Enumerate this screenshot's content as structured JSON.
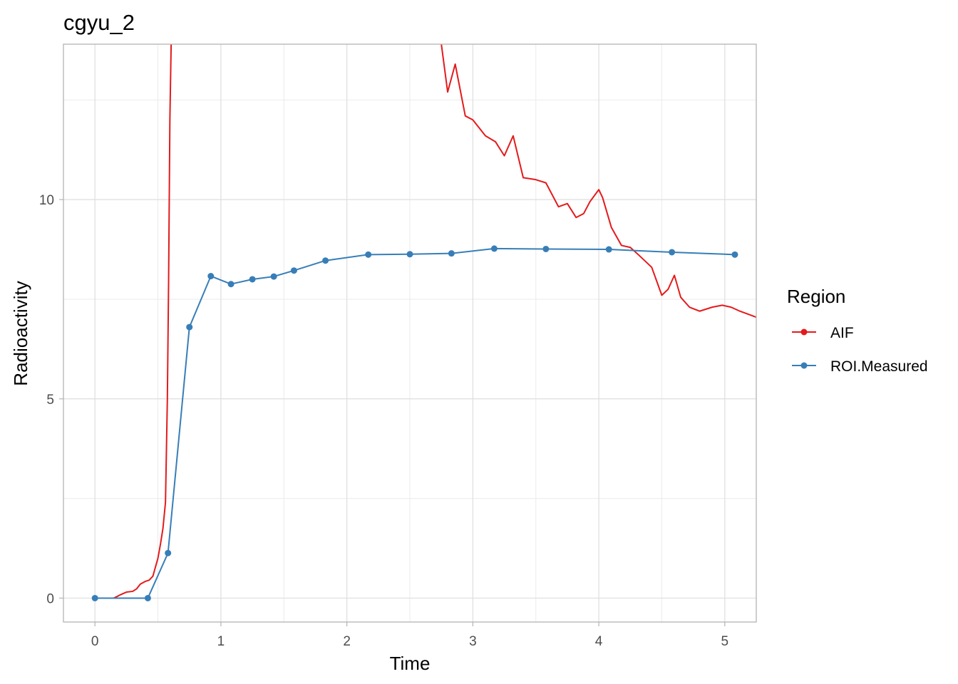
{
  "chart_data": {
    "type": "line",
    "title": "cgyu_2",
    "xlabel": "Time",
    "ylabel": "Radioactivity",
    "xlim": [
      -0.25,
      5.25
    ],
    "ylim": [
      -0.6,
      13.9
    ],
    "x_ticks": [
      0,
      1,
      2,
      3,
      4,
      5
    ],
    "x_tick_labels": [
      "0",
      "1",
      "2",
      "3",
      "4",
      "5"
    ],
    "y_ticks": [
      0,
      5,
      10
    ],
    "y_tick_labels": [
      "0",
      "5",
      "10"
    ],
    "grid": true,
    "legend": {
      "title": "Region",
      "position": "right"
    },
    "series": [
      {
        "name": "AIF",
        "color": "#E41A1C",
        "markers": false,
        "x": [
          0.15,
          0.2,
          0.25,
          0.3,
          0.33,
          0.36,
          0.4,
          0.43,
          0.46,
          0.5,
          0.52,
          0.54,
          0.56,
          0.575,
          0.585,
          0.595,
          0.605,
          0.62,
          0.64,
          2.75,
          2.8,
          2.86,
          2.94,
          3.0,
          3.1,
          3.18,
          3.25,
          3.32,
          3.4,
          3.5,
          3.58,
          3.68,
          3.75,
          3.82,
          3.88,
          3.93,
          4.0,
          4.03,
          4.1,
          4.18,
          4.25,
          4.32,
          4.42,
          4.5,
          4.55,
          4.6,
          4.65,
          4.72,
          4.8,
          4.9,
          4.98,
          5.05,
          5.12,
          5.25
        ],
        "y": [
          0.0,
          0.08,
          0.15,
          0.17,
          0.23,
          0.35,
          0.42,
          0.45,
          0.55,
          1.0,
          1.35,
          1.75,
          2.4,
          5.0,
          8.0,
          12.0,
          13.9,
          15.5,
          18.0,
          13.9,
          12.7,
          13.4,
          12.1,
          12.0,
          11.6,
          11.45,
          11.1,
          11.6,
          10.55,
          10.5,
          10.42,
          9.82,
          9.9,
          9.55,
          9.65,
          9.95,
          10.25,
          10.05,
          9.3,
          8.85,
          8.8,
          8.6,
          8.3,
          7.6,
          7.75,
          8.1,
          7.55,
          7.3,
          7.2,
          7.3,
          7.35,
          7.3,
          7.2,
          7.05
        ]
      },
      {
        "name": "ROI.Measured",
        "color": "#377EB8",
        "markers": true,
        "x": [
          0.0,
          0.42,
          0.58,
          0.75,
          0.92,
          1.08,
          1.25,
          1.42,
          1.58,
          1.83,
          2.17,
          2.5,
          2.83,
          3.17,
          3.58,
          4.08,
          4.58,
          5.08
        ],
        "y": [
          0.0,
          0.0,
          1.13,
          6.8,
          8.08,
          7.88,
          8.0,
          8.07,
          8.22,
          8.47,
          8.62,
          8.63,
          8.65,
          8.77,
          8.76,
          8.75,
          8.68,
          8.62
        ]
      }
    ]
  }
}
